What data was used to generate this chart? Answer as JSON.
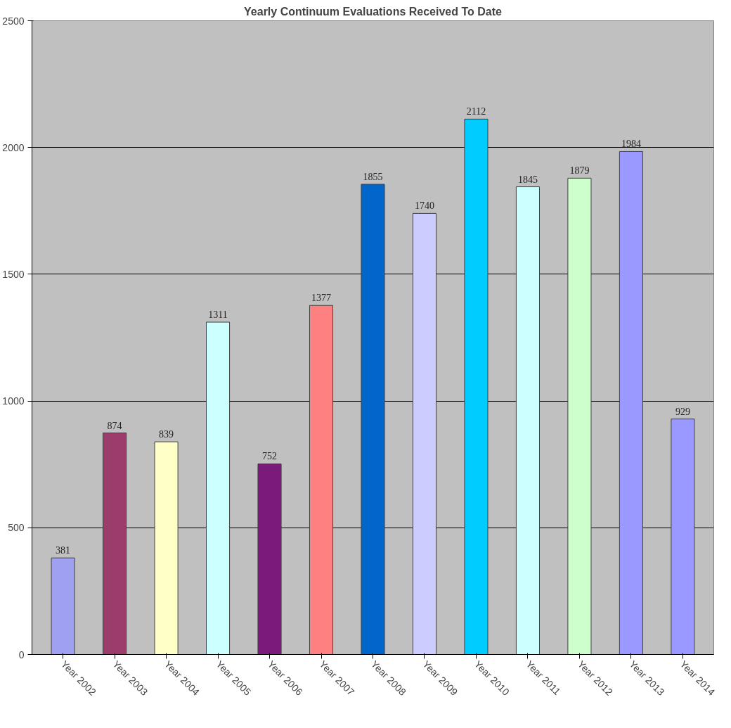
{
  "chart_data": {
    "type": "bar",
    "title": "Yearly Continuum Evaluations Received To Date",
    "categories": [
      "Year 2002",
      "Year 2003",
      "Year 2004",
      "Year 2005",
      "Year 2006",
      "Year 2007",
      "Year 2008",
      "Year 2009",
      "Year 2010",
      "Year 2011",
      "Year 2012",
      "Year 2013",
      "Year 2014"
    ],
    "values": [
      381,
      874,
      839,
      1311,
      752,
      1377,
      1855,
      1740,
      2112,
      1845,
      1879,
      1984,
      929
    ],
    "colors": [
      "#a0a0f0",
      "#9c3c6c",
      "#ffffc8",
      "#ccffff",
      "#7a1a7a",
      "#ff8080",
      "#0066cc",
      "#ccccff",
      "#00ccff",
      "#ccffff",
      "#ccffcc",
      "#9999ff",
      "#9999ff"
    ],
    "ylim": [
      0,
      2500
    ],
    "yticks": [
      0,
      500,
      1000,
      1500,
      2000,
      2500
    ],
    "grid": "y",
    "data_labels": true
  }
}
